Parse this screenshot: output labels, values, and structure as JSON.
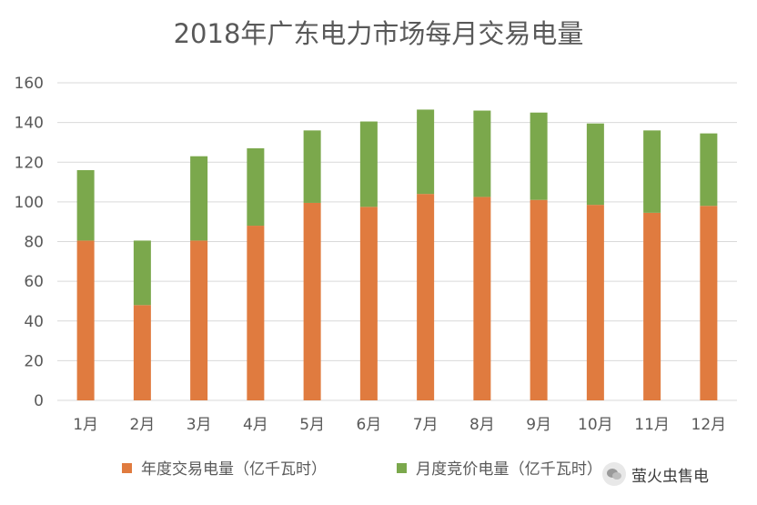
{
  "chart_data": {
    "type": "bar",
    "stacked": true,
    "title": "2018年广东电力市场每月交易电量",
    "categories": [
      "1月",
      "2月",
      "3月",
      "4月",
      "5月",
      "6月",
      "7月",
      "8月",
      "9月",
      "10月",
      "11月",
      "12月"
    ],
    "series": [
      {
        "name": "年度交易电量（亿千瓦时）",
        "color": "#E07B3F",
        "values": [
          80.5,
          48,
          80.5,
          88,
          99.5,
          97.5,
          104,
          102.5,
          101,
          98.5,
          94.5,
          98
        ]
      },
      {
        "name": "月度竞价电量（亿千瓦时）",
        "color": "#7BA84C",
        "values": [
          35.5,
          32.5,
          42.5,
          39,
          36.5,
          43,
          42.5,
          43.5,
          44,
          41,
          41.5,
          36.5
        ]
      }
    ],
    "ylim": [
      0,
      160
    ],
    "yticks": [
      0,
      20,
      40,
      60,
      80,
      100,
      120,
      140,
      160
    ],
    "grid": true,
    "legend": "bottom"
  },
  "watermark": {
    "icon": "wechat-icon",
    "text": "萤火虫售电"
  }
}
